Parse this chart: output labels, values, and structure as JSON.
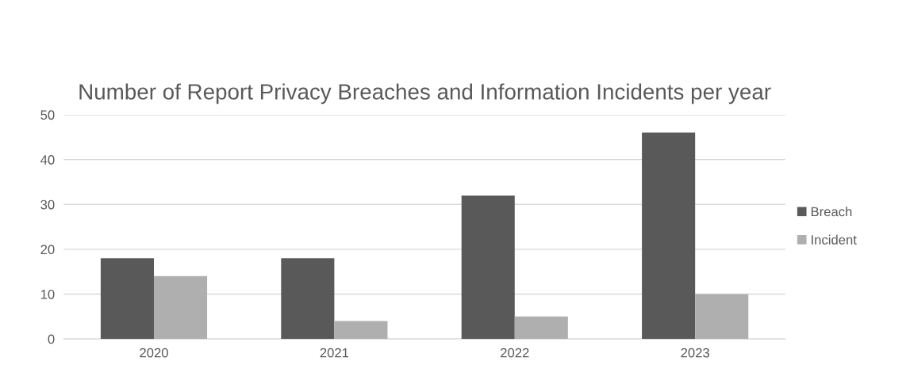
{
  "chart_data": {
    "type": "bar",
    "title": "Number of Report Privacy Breaches and Information Incidents per year",
    "categories": [
      "2020",
      "2021",
      "2022",
      "2023"
    ],
    "series": [
      {
        "name": "Breach",
        "color": "#595959",
        "values": [
          18,
          18,
          32,
          46
        ]
      },
      {
        "name": "Incident",
        "color": "#afafaf",
        "values": [
          14,
          4,
          5,
          10
        ]
      }
    ],
    "ylim": [
      0,
      50
    ],
    "yticks": [
      0,
      10,
      20,
      30,
      40,
      50
    ],
    "grid": "y",
    "legend": "right"
  }
}
